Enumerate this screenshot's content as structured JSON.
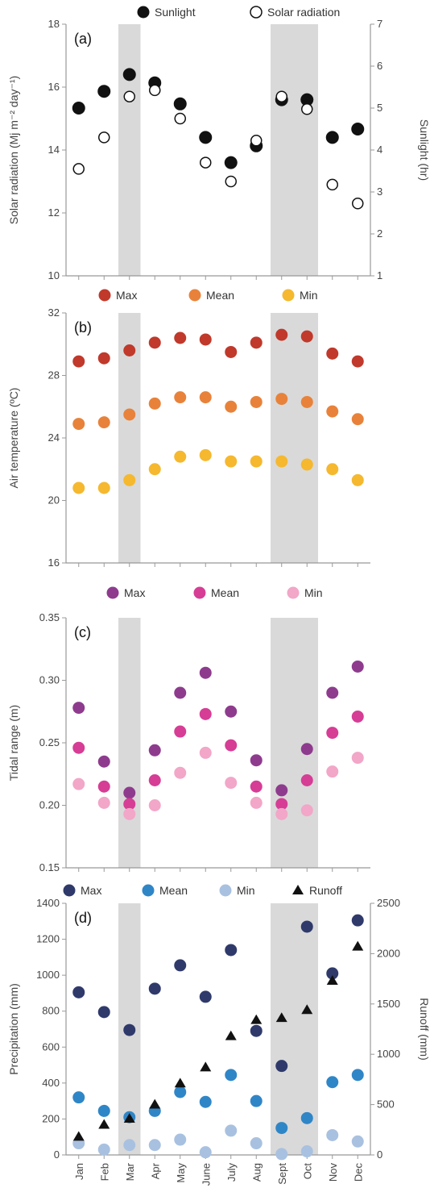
{
  "months": [
    "Jan",
    "Feb",
    "Mar",
    "Apr",
    "May",
    "June",
    "July",
    "Aug",
    "Sept",
    "Oct",
    "Nov",
    "Dec"
  ],
  "chart_data": [
    {
      "type": "scatter",
      "panel_label": "(a)",
      "ylabel": "Solar radiation (Mj m⁻² day⁻¹)",
      "y2label": "Sunlight (hr)",
      "ylim": [
        10,
        18
      ],
      "yticks": [
        10,
        12,
        14,
        16,
        18
      ],
      "y2lim": [
        1,
        7
      ],
      "y2ticks": [
        1,
        2,
        3,
        4,
        5,
        6,
        7
      ],
      "shaded_months": [
        "Mar",
        "Sept",
        "Oct"
      ],
      "series": [
        {
          "name": "Sunlight",
          "axis": "right",
          "marker": "filled",
          "color": "#111111",
          "values": [
            5.0,
            5.4,
            5.8,
            5.6,
            5.1,
            4.3,
            3.7,
            4.1,
            5.2,
            5.2,
            4.3,
            4.5
          ]
        },
        {
          "name": "Solar radiation",
          "axis": "left",
          "marker": "hollow",
          "color": "#111111",
          "values": [
            13.4,
            14.4,
            15.7,
            15.9,
            15.0,
            13.6,
            13.0,
            14.3,
            15.7,
            15.3,
            12.9,
            12.3
          ]
        }
      ]
    },
    {
      "type": "scatter",
      "panel_label": "(b)",
      "ylabel": "Air temperature (ºC)",
      "ylim": [
        16,
        32
      ],
      "yticks": [
        16,
        20,
        24,
        28,
        32
      ],
      "shaded_months": [
        "Mar",
        "Sept",
        "Oct"
      ],
      "series": [
        {
          "name": "Max",
          "color": "#c0392b",
          "values": [
            28.9,
            29.1,
            29.6,
            30.1,
            30.4,
            30.3,
            29.5,
            30.1,
            30.6,
            30.5,
            29.4,
            28.9
          ]
        },
        {
          "name": "Mean",
          "color": "#e8823a",
          "values": [
            24.9,
            25.0,
            25.5,
            26.2,
            26.6,
            26.6,
            26.0,
            26.3,
            26.5,
            26.3,
            25.7,
            25.2
          ]
        },
        {
          "name": "Min",
          "color": "#f5b82e",
          "values": [
            20.8,
            20.8,
            21.3,
            22.0,
            22.8,
            22.9,
            22.5,
            22.5,
            22.5,
            22.3,
            22.0,
            21.3
          ]
        }
      ]
    },
    {
      "type": "scatter",
      "panel_label": "(c)",
      "ylabel": "Tidal range (m)",
      "ylim": [
        0.15,
        0.35
      ],
      "yticks": [
        0.15,
        0.2,
        0.25,
        0.3,
        0.35
      ],
      "ytick_labels": [
        "0.15",
        "0.20",
        "0.25",
        "0.30",
        "0.35"
      ],
      "shaded_months": [
        "Mar",
        "Sept",
        "Oct"
      ],
      "series": [
        {
          "name": "Max",
          "color": "#8e3b8e",
          "values": [
            0.278,
            0.235,
            0.21,
            0.244,
            0.29,
            0.306,
            0.275,
            0.236,
            0.212,
            0.245,
            0.29,
            0.311
          ]
        },
        {
          "name": "Mean",
          "color": "#d63d95",
          "values": [
            0.246,
            0.215,
            0.201,
            0.22,
            0.259,
            0.273,
            0.248,
            0.215,
            0.201,
            0.22,
            0.258,
            0.271
          ]
        },
        {
          "name": "Min",
          "color": "#f2a6c8",
          "values": [
            0.217,
            0.202,
            0.193,
            0.2,
            0.226,
            0.242,
            0.218,
            0.202,
            0.193,
            0.196,
            0.227,
            0.238
          ]
        }
      ]
    },
    {
      "type": "scatter",
      "panel_label": "(d)",
      "ylabel": "Precipitation (mm)",
      "y2label": "Runoff (mm)",
      "ylim": [
        0,
        1400
      ],
      "yticks": [
        0,
        200,
        400,
        600,
        800,
        1000,
        1200,
        1400
      ],
      "y2lim": [
        0,
        2500
      ],
      "y2ticks": [
        0,
        500,
        1000,
        1500,
        2000,
        2500
      ],
      "shaded_months": [
        "Mar",
        "Sept",
        "Oct"
      ],
      "series": [
        {
          "name": "Max",
          "color": "#2f3a6b",
          "axis": "left",
          "values": [
            905,
            795,
            695,
            925,
            1055,
            880,
            1140,
            690,
            495,
            1270,
            1010,
            1305
          ]
        },
        {
          "name": "Mean",
          "color": "#2f86c7",
          "axis": "left",
          "values": [
            320,
            245,
            210,
            245,
            350,
            295,
            445,
            300,
            150,
            205,
            405,
            445
          ]
        },
        {
          "name": "Min",
          "color": "#a9c1e0",
          "axis": "left",
          "values": [
            65,
            30,
            55,
            55,
            85,
            15,
            135,
            65,
            5,
            20,
            110,
            75
          ]
        },
        {
          "name": "Runoff",
          "color": "#111111",
          "axis": "right",
          "marker": "triangle",
          "values": [
            180,
            300,
            360,
            500,
            710,
            870,
            1180,
            1340,
            1360,
            1440,
            1730,
            2070
          ]
        }
      ]
    }
  ]
}
